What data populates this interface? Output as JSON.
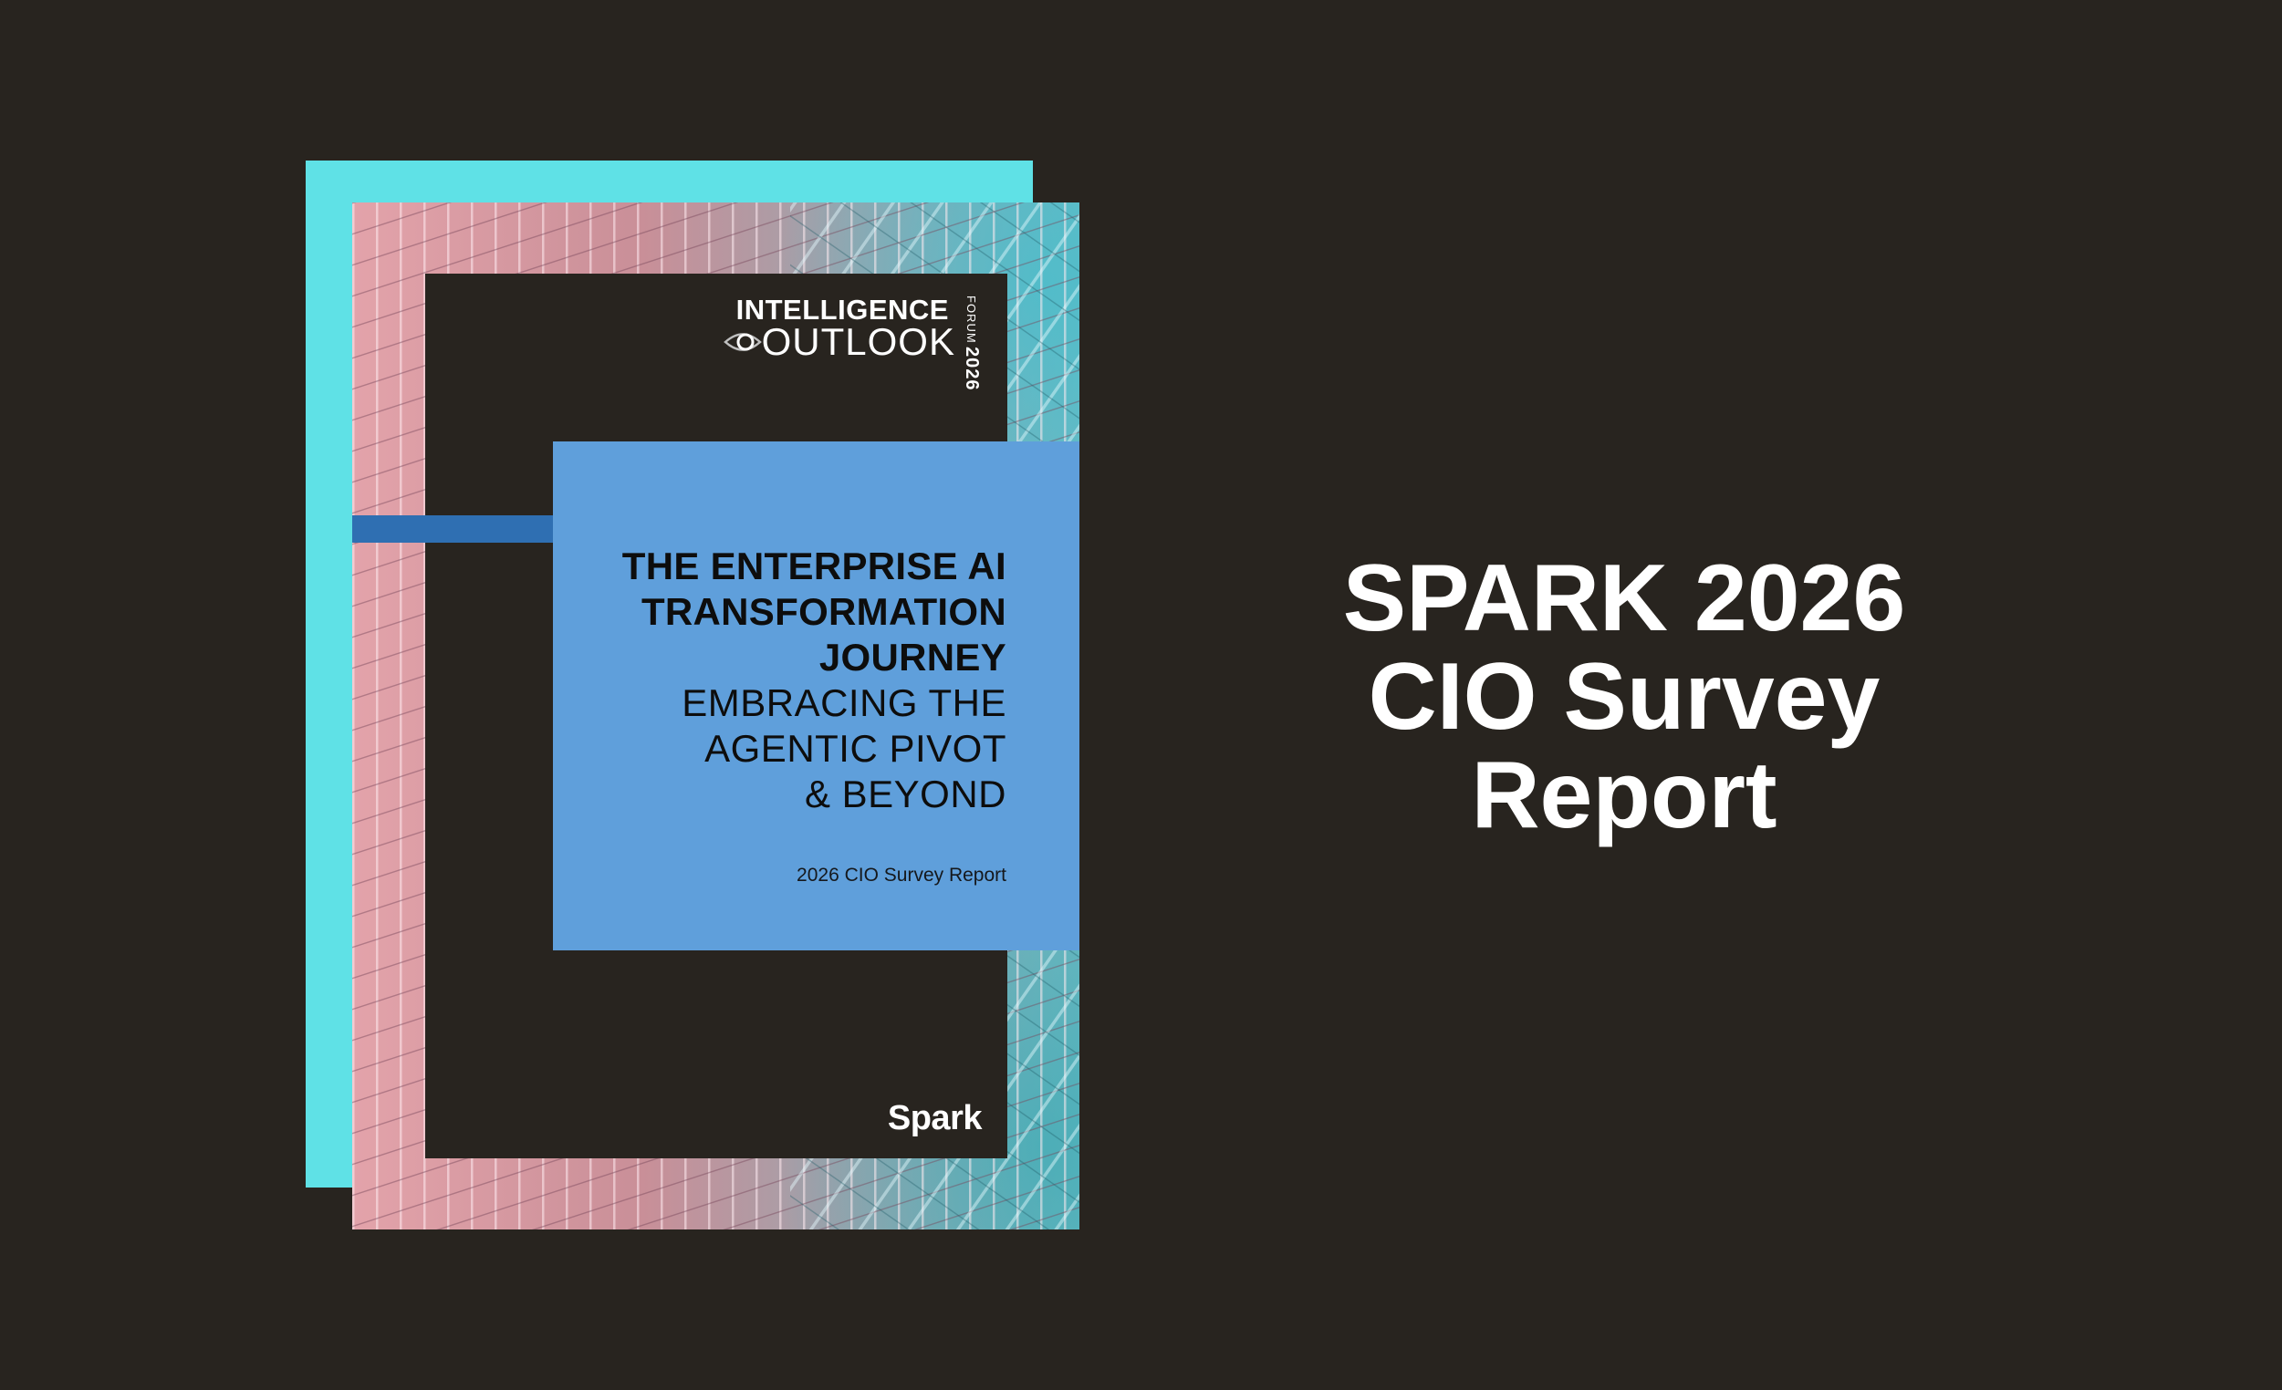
{
  "cover": {
    "logo": {
      "line1": "INTELLIGENCE",
      "line2": "OUTLOOK",
      "vertical_forum": "FORUM",
      "vertical_year": "2026",
      "eye_icon": "eye-icon"
    },
    "title_bold": "THE ENTERPRISE AI\nTRANSFORMATION\nJOURNEY",
    "title_light": "EMBRACING THE\nAGENTIC PIVOT\n& BEYOND",
    "subtitle": "2026 CIO Survey Report",
    "brand": "Spark"
  },
  "headline": "SPARK 2026\nCIO Survey\nReport",
  "colors": {
    "background": "#28241f",
    "back_sheet": "#5fe1e6",
    "blue_box": "#5f9fdb",
    "blue_stripe": "#2f6fb2",
    "text_white": "#ffffff"
  }
}
